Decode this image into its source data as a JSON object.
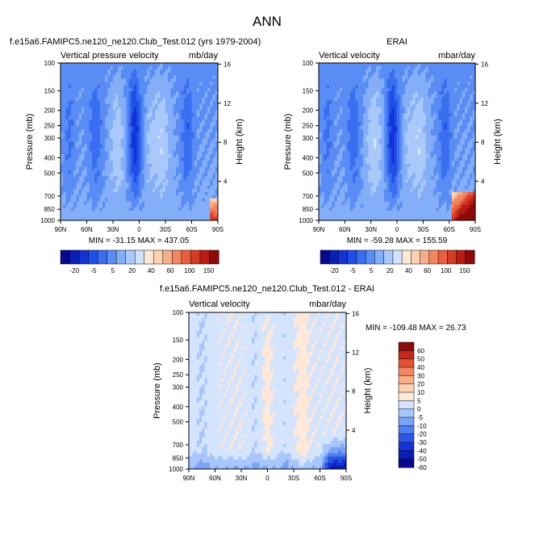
{
  "figure": {
    "title": "ANN",
    "palette_main": [
      "#08088a",
      "#0a1fb5",
      "#1432d6",
      "#1f4fe6",
      "#3a6ef0",
      "#5a8cf5",
      "#84aef8",
      "#aac9fb",
      "#d0e2fd",
      "#ffe8d8",
      "#fcd0b2",
      "#f8ae88",
      "#f28660",
      "#e85e3e",
      "#d63b26",
      "#b81d14",
      "#8b0a0a"
    ],
    "palette_diff": [
      "#08088a",
      "#0a1fb5",
      "#1432d6",
      "#2a55e6",
      "#4d7ff0",
      "#7aa3f6",
      "#a8c6fb",
      "#d4e4fd",
      "#ffe8d8",
      "#fcd0b2",
      "#f8ae88",
      "#f28660",
      "#e05436",
      "#c42a1c",
      "#8b0a0a"
    ]
  },
  "chart_data": [
    {
      "type": "heatmap",
      "title": "f.e15a6.FAMIPC5.ne120_ne120.Club_Test.012 (yrs 1979-2004)",
      "left_string": "Vertical pressure velocity",
      "right_string": "mb/day",
      "xlabel": "",
      "ylabel": "Pressure (mb)",
      "y2label": "Height (km)",
      "x_ticks": [
        "90N",
        "60N",
        "30N",
        "0",
        "30S",
        "60S",
        "90S"
      ],
      "x_ticks_deg": [
        90,
        60,
        30,
        0,
        -30,
        -60,
        -90
      ],
      "y_ticks": [
        100,
        150,
        200,
        250,
        300,
        400,
        500,
        700,
        850,
        1000
      ],
      "y2_ticks": [
        16,
        12,
        8,
        4
      ],
      "ylim": [
        100,
        1000
      ],
      "xlim": [
        90,
        -90
      ],
      "min_max": "MIN = -31.15   MAX = 437.05",
      "colorbar_labels": [
        "-20",
        "-5",
        "5",
        "20",
        "40",
        "60",
        "100",
        "150"
      ]
    },
    {
      "type": "heatmap",
      "title": "ERAI",
      "left_string": "Vertical velocity",
      "right_string": "mbar/day",
      "xlabel": "",
      "ylabel": "Pressure (mb)",
      "y2label": "Height (km)",
      "x_ticks": [
        "90N",
        "60N",
        "30N",
        "0",
        "30S",
        "60S",
        "90S"
      ],
      "x_ticks_deg": [
        90,
        60,
        30,
        0,
        -30,
        -60,
        -90
      ],
      "y_ticks": [
        100,
        150,
        200,
        250,
        300,
        400,
        500,
        700,
        850,
        1000
      ],
      "y2_ticks": [
        16,
        12,
        8,
        4
      ],
      "ylim": [
        100,
        1000
      ],
      "xlim": [
        90,
        -90
      ],
      "min_max": "MIN = -59.28   MAX = 155.59",
      "colorbar_labels": [
        "-20",
        "-5",
        "5",
        "20",
        "40",
        "60",
        "100",
        "150"
      ]
    },
    {
      "type": "heatmap",
      "title": "f.e15a6.FAMIPC5.ne120_ne120.Club_Test.012 - ERAI",
      "left_string": "Vertical velocity",
      "right_string": "mbar/day",
      "xlabel": "",
      "ylabel": "Pressure (mb)",
      "y2label": "Height (km)",
      "x_ticks": [
        "90N",
        "60N",
        "30N",
        "0",
        "30S",
        "60S",
        "90S"
      ],
      "x_ticks_deg": [
        90,
        60,
        30,
        0,
        -30,
        -60,
        -90
      ],
      "y_ticks": [
        100,
        150,
        200,
        250,
        300,
        400,
        500,
        700,
        850,
        1000
      ],
      "y2_ticks": [
        16,
        12,
        8,
        4
      ],
      "ylim": [
        100,
        1000
      ],
      "xlim": [
        90,
        -90
      ],
      "min_max": "MIN = -109.48   MAX =  26.73",
      "colorbar_labels": [
        "60",
        "50",
        "40",
        "30",
        "20",
        "10",
        "5",
        "0",
        "-5",
        "-10",
        "-20",
        "-30",
        "-40",
        "-50",
        "-60"
      ]
    }
  ]
}
